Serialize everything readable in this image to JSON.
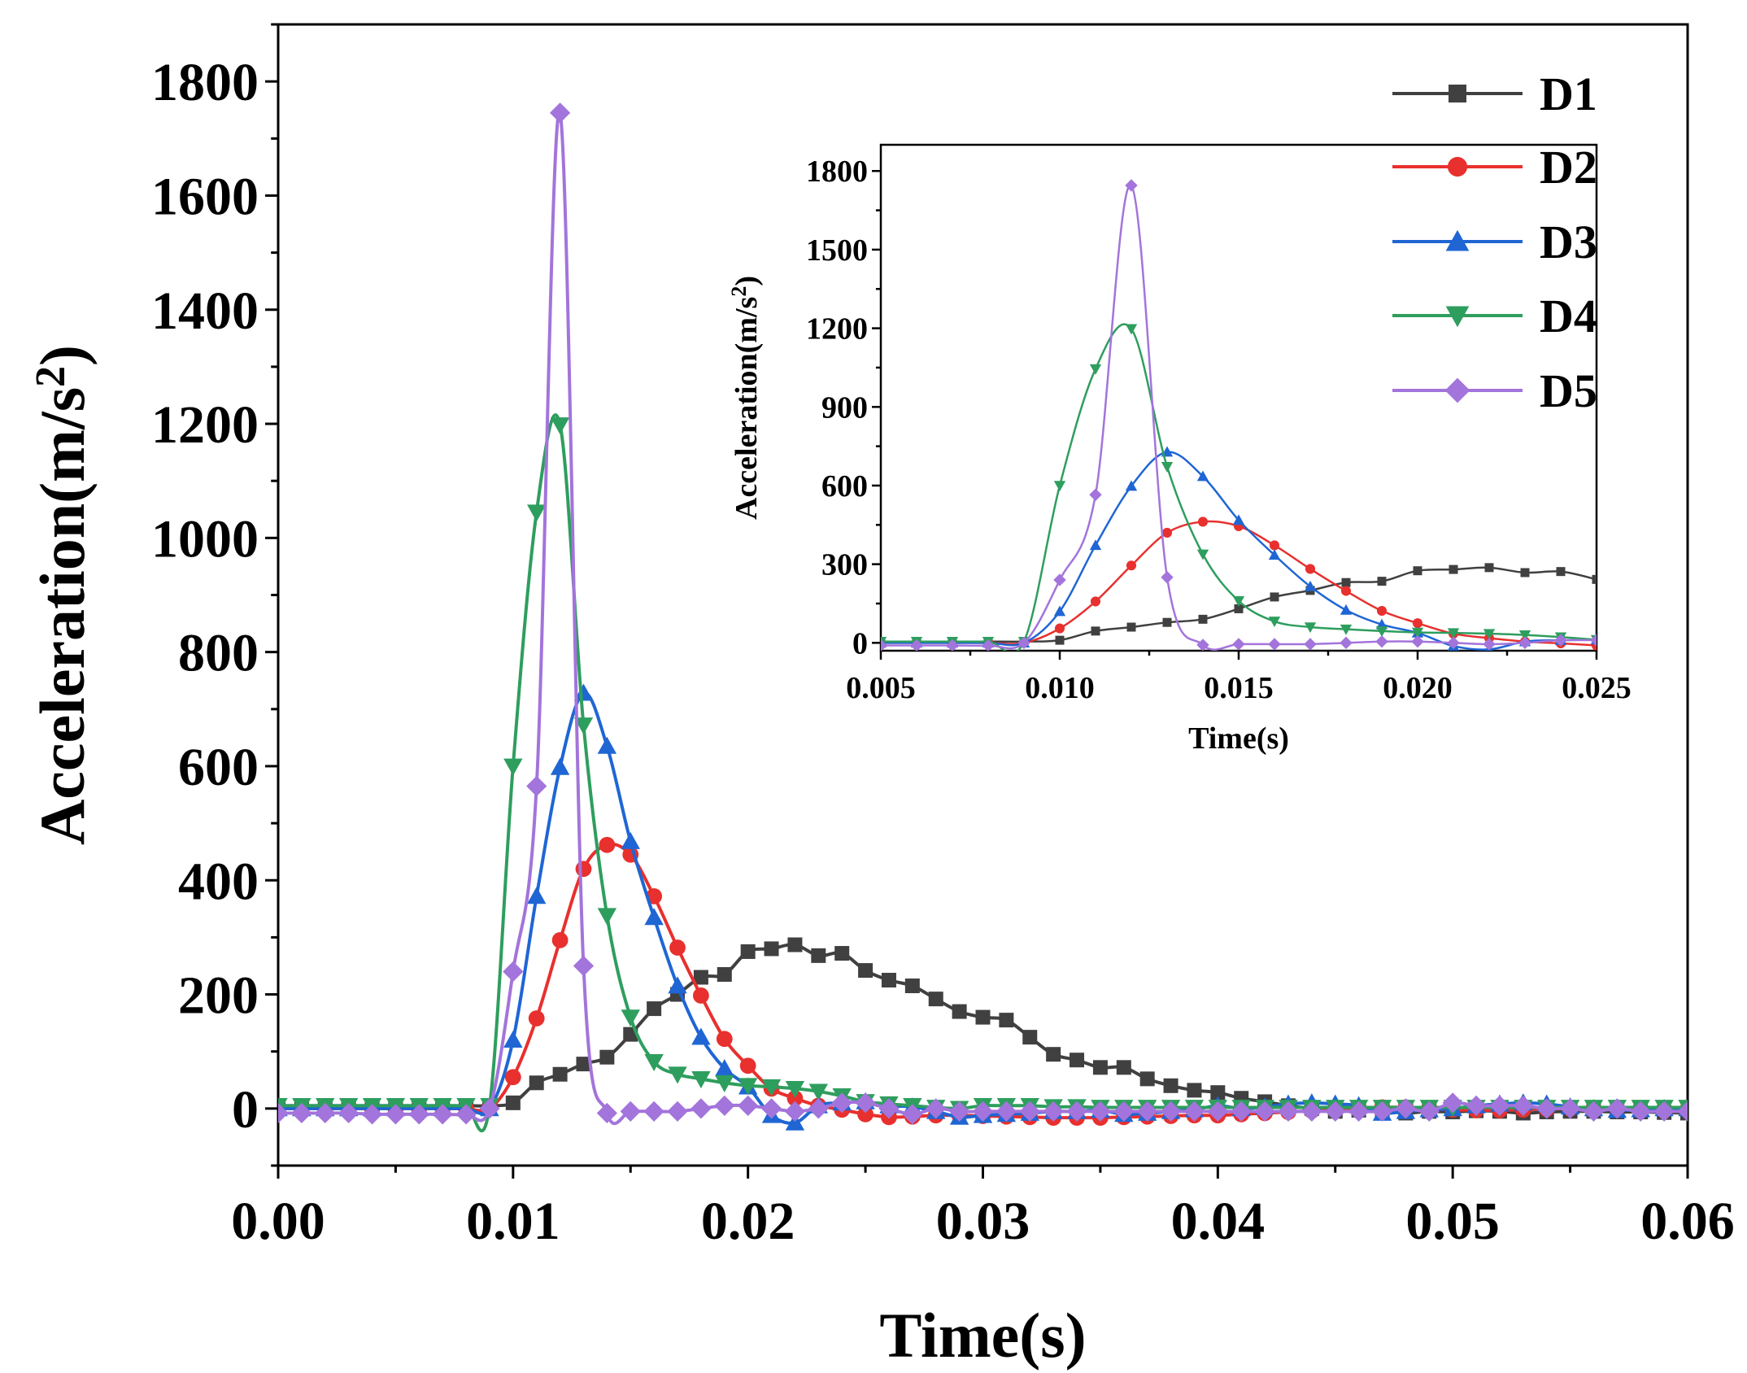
{
  "chart_data": [
    {
      "type": "line",
      "title": "",
      "xlabel": "Time(s)",
      "ylabel": "Acceleration(m/s",
      "ylabel_sup": "2",
      "ylabel_end": ")",
      "xlim": [
        0,
        0.06
      ],
      "ylim": [
        -100,
        1900
      ],
      "x_ticks": [
        0,
        0.01,
        0.02,
        0.03,
        0.04,
        0.05,
        0.06
      ],
      "x_tick_labels": [
        "0.00",
        "0.01",
        "0.02",
        "0.03",
        "0.04",
        "0.05",
        "0.06"
      ],
      "y_ticks": [
        0,
        200,
        400,
        600,
        800,
        1000,
        1200,
        1400,
        1600,
        1800
      ],
      "y_tick_labels": [
        "0",
        "200",
        "400",
        "600",
        "800",
        "1000",
        "1200",
        "1400",
        "1600",
        "1800"
      ],
      "legend_position": "top-right",
      "series": [
        {
          "name": "D1",
          "color": "#404040",
          "marker": "square",
          "x": [
            0,
            0.001,
            0.002,
            0.003,
            0.004,
            0.005,
            0.006,
            0.007,
            0.008,
            0.009,
            0.01,
            0.011,
            0.012,
            0.013,
            0.014,
            0.015,
            0.016,
            0.017,
            0.018,
            0.019,
            0.02,
            0.021,
            0.022,
            0.023,
            0.024,
            0.025,
            0.026,
            0.027,
            0.028,
            0.029,
            0.03,
            0.031,
            0.032,
            0.033,
            0.034,
            0.035,
            0.036,
            0.037,
            0.038,
            0.039,
            0.04,
            0.041,
            0.042,
            0.043,
            0.044,
            0.045,
            0.046,
            0.047,
            0.048,
            0.049,
            0.05,
            0.051,
            0.052,
            0.053,
            0.054,
            0.055,
            0.056,
            0.057,
            0.058,
            0.059,
            0.06
          ],
          "y": [
            5,
            5,
            5,
            5,
            5,
            5,
            5,
            5,
            5,
            5,
            10,
            45,
            60,
            78,
            90,
            130,
            175,
            200,
            230,
            235,
            275,
            280,
            287,
            268,
            272,
            242,
            225,
            215,
            192,
            170,
            160,
            155,
            125,
            95,
            85,
            72,
            72,
            52,
            40,
            32,
            28,
            18,
            12,
            5,
            0,
            -5,
            -3,
            -4,
            -8,
            -5,
            -6,
            -4,
            -5,
            -8,
            -6,
            -5,
            -5,
            -6,
            -6,
            -7,
            -8
          ]
        },
        {
          "name": "D2",
          "color": "#e8302e",
          "marker": "circle",
          "x": [
            0,
            0.001,
            0.002,
            0.003,
            0.004,
            0.005,
            0.006,
            0.007,
            0.008,
            0.009,
            0.01,
            0.011,
            0.012,
            0.013,
            0.014,
            0.015,
            0.016,
            0.017,
            0.018,
            0.019,
            0.02,
            0.021,
            0.022,
            0.023,
            0.024,
            0.025,
            0.026,
            0.027,
            0.028,
            0.029,
            0.03,
            0.031,
            0.032,
            0.033,
            0.034,
            0.035,
            0.036,
            0.037,
            0.038,
            0.039,
            0.04,
            0.041,
            0.042,
            0.043,
            0.044,
            0.045,
            0.046,
            0.047,
            0.048,
            0.049,
            0.05,
            0.051,
            0.052,
            0.053,
            0.054,
            0.055,
            0.056,
            0.057,
            0.058,
            0.059,
            0.06
          ],
          "y": [
            0,
            0,
            0,
            0,
            0,
            0,
            0,
            0,
            0,
            0,
            55,
            158,
            295,
            420,
            462,
            445,
            372,
            282,
            198,
            122,
            75,
            35,
            18,
            5,
            -2,
            -10,
            -15,
            -14,
            -12,
            -12,
            -13,
            -14,
            -15,
            -16,
            -16,
            -16,
            -15,
            -14,
            -13,
            -12,
            -12,
            -10,
            -8,
            -6,
            -4,
            -2,
            0,
            2,
            2,
            0,
            -2,
            -3,
            -3,
            -2,
            -1,
            0,
            0,
            0,
            -1,
            -1,
            -1
          ]
        },
        {
          "name": "D3",
          "color": "#1f66d4",
          "marker": "triangle-up",
          "x": [
            0,
            0.001,
            0.002,
            0.003,
            0.004,
            0.005,
            0.006,
            0.007,
            0.008,
            0.009,
            0.01,
            0.011,
            0.012,
            0.013,
            0.014,
            0.015,
            0.016,
            0.017,
            0.018,
            0.019,
            0.02,
            0.021,
            0.022,
            0.023,
            0.024,
            0.025,
            0.026,
            0.027,
            0.028,
            0.029,
            0.03,
            0.031,
            0.032,
            0.033,
            0.034,
            0.035,
            0.036,
            0.037,
            0.038,
            0.039,
            0.04,
            0.041,
            0.042,
            0.043,
            0.044,
            0.045,
            0.046,
            0.047,
            0.048,
            0.049,
            0.05,
            0.051,
            0.052,
            0.053,
            0.054,
            0.055,
            0.056,
            0.057,
            0.058,
            0.059,
            0.06
          ],
          "y": [
            0,
            0,
            0,
            0,
            0,
            0,
            0,
            0,
            0,
            0,
            120,
            372,
            598,
            728,
            635,
            468,
            335,
            215,
            125,
            70,
            38,
            -12,
            -25,
            5,
            10,
            12,
            5,
            3,
            -5,
            -15,
            -12,
            -10,
            -8,
            -5,
            -5,
            -3,
            -10,
            -8,
            -5,
            -2,
            5,
            0,
            3,
            8,
            10,
            8,
            5,
            -8,
            -5,
            -2,
            0,
            5,
            8,
            10,
            8,
            3,
            0,
            -3,
            -2,
            0,
            0
          ]
        },
        {
          "name": "D4",
          "color": "#2e9e5e",
          "marker": "triangle-down",
          "x": [
            0,
            0.001,
            0.002,
            0.003,
            0.004,
            0.005,
            0.006,
            0.007,
            0.008,
            0.009,
            0.01,
            0.011,
            0.012,
            0.013,
            0.014,
            0.015,
            0.016,
            0.017,
            0.018,
            0.019,
            0.02,
            0.021,
            0.022,
            0.023,
            0.024,
            0.025,
            0.026,
            0.027,
            0.028,
            0.029,
            0.03,
            0.031,
            0.032,
            0.033,
            0.034,
            0.035,
            0.036,
            0.037,
            0.038,
            0.039,
            0.04,
            0.041,
            0.042,
            0.043,
            0.044,
            0.045,
            0.046,
            0.047,
            0.048,
            0.049,
            0.05,
            0.051,
            0.052,
            0.053,
            0.054,
            0.055,
            0.056,
            0.057,
            0.058,
            0.059,
            0.06
          ],
          "y": [
            5,
            5,
            5,
            5,
            5,
            5,
            5,
            5,
            5,
            5,
            600,
            1045,
            1198,
            672,
            338,
            160,
            82,
            60,
            52,
            45,
            40,
            38,
            35,
            30,
            22,
            12,
            8,
            5,
            2,
            0,
            5,
            5,
            5,
            3,
            3,
            2,
            2,
            2,
            2,
            2,
            2,
            2,
            2,
            2,
            2,
            2,
            2,
            2,
            2,
            2,
            2,
            2,
            2,
            2,
            2,
            2,
            2,
            2,
            2,
            2,
            2
          ]
        },
        {
          "name": "D5",
          "color": "#a374db",
          "marker": "diamond",
          "x": [
            0,
            0.001,
            0.002,
            0.003,
            0.004,
            0.005,
            0.006,
            0.007,
            0.008,
            0.009,
            0.01,
            0.011,
            0.012,
            0.013,
            0.014,
            0.015,
            0.016,
            0.017,
            0.018,
            0.019,
            0.02,
            0.021,
            0.022,
            0.023,
            0.024,
            0.025,
            0.026,
            0.027,
            0.028,
            0.029,
            0.03,
            0.031,
            0.032,
            0.033,
            0.034,
            0.035,
            0.036,
            0.037,
            0.038,
            0.039,
            0.04,
            0.041,
            0.042,
            0.043,
            0.044,
            0.045,
            0.046,
            0.047,
            0.048,
            0.049,
            0.05,
            0.051,
            0.052,
            0.053,
            0.054,
            0.055,
            0.056,
            0.057,
            0.058,
            0.059,
            0.06
          ],
          "y": [
            -8,
            -8,
            -8,
            -8,
            -10,
            -10,
            -10,
            -10,
            -10,
            0,
            240,
            565,
            1745,
            250,
            -8,
            -5,
            -5,
            -5,
            0,
            5,
            5,
            0,
            -5,
            0,
            10,
            10,
            0,
            -10,
            0,
            -5,
            -5,
            -5,
            -5,
            -5,
            -5,
            -5,
            -5,
            -5,
            -5,
            -5,
            -5,
            -5,
            -5,
            -5,
            -5,
            -5,
            -5,
            -5,
            0,
            -5,
            10,
            5,
            5,
            5,
            0,
            0,
            -5,
            0,
            -5,
            -5,
            -5
          ]
        }
      ]
    },
    {
      "type": "line",
      "title": "",
      "xlabel": "Time(s)",
      "ylabel": "Acceleration(m/s",
      "ylabel_sup": "2",
      "ylabel_end": ")",
      "xlim": [
        0.005,
        0.025
      ],
      "ylim": [
        -30,
        1900
      ],
      "x_ticks": [
        0.005,
        0.01,
        0.015,
        0.02,
        0.025
      ],
      "x_tick_labels": [
        "0.005",
        "0.010",
        "0.015",
        "0.020",
        "0.025"
      ],
      "y_ticks": [
        0,
        300,
        600,
        900,
        1200,
        1500,
        1800
      ],
      "y_tick_labels": [
        "0",
        "300",
        "600",
        "900",
        "1200",
        "1500",
        "1800"
      ],
      "note": "inset zoom of the same D1-D5 series over 0.005-0.025 s"
    }
  ]
}
